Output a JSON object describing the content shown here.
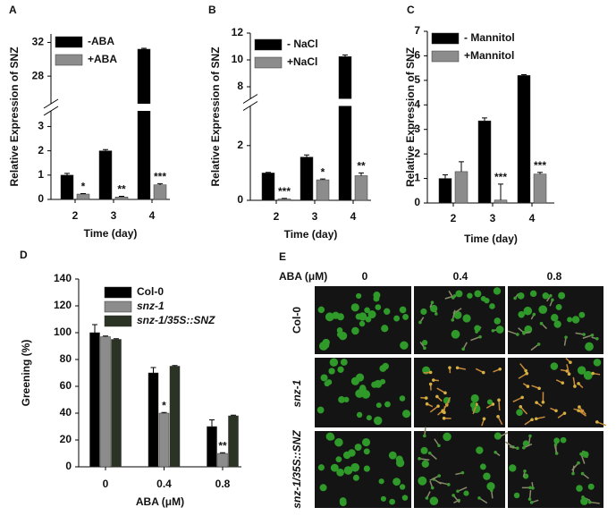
{
  "chart_data": [
    {
      "type": "bar",
      "panel": "A",
      "y_label": "Relative Expression of SNZ",
      "x_label": "Time (day)",
      "categories": [
        "2",
        "3",
        "4"
      ],
      "series": [
        {
          "name": "-ABA",
          "color": "#000000",
          "values": [
            1.0,
            2.0,
            31.2
          ],
          "errors": [
            0.07,
            0.05,
            0.1
          ],
          "sig_labels": [
            null,
            null,
            null
          ]
        },
        {
          "name": "+ABA",
          "color": "#8c8c8c",
          "values": [
            0.22,
            0.1,
            0.6
          ],
          "errors": [
            0.02,
            0.03,
            0.05
          ],
          "sig_labels": [
            "*",
            "**",
            "***"
          ]
        }
      ],
      "ylim": [
        0,
        33
      ],
      "axis_break": [
        3.2,
        26
      ],
      "yticks": [
        0,
        1,
        2,
        3,
        28,
        32
      ],
      "legend": "upper left"
    },
    {
      "type": "bar",
      "panel": "B",
      "y_label": "Relative Expression of SNZ",
      "x_label": "Time (day)",
      "categories": [
        "2",
        "3",
        "4"
      ],
      "series": [
        {
          "name": "- NaCl",
          "color": "#000000",
          "values": [
            1.0,
            1.58,
            10.25
          ],
          "errors": [
            0.02,
            0.08,
            0.12
          ],
          "sig_labels": [
            null,
            null,
            null
          ]
        },
        {
          "name": "+NaCl",
          "color": "#8c8c8c",
          "values": [
            0.05,
            0.75,
            0.9
          ],
          "errors": [
            0.02,
            0.03,
            0.1
          ],
          "sig_labels": [
            "***",
            "*",
            "**"
          ]
        }
      ],
      "ylim": [
        0,
        12
      ],
      "axis_break": [
        3.3,
        7.4
      ],
      "yticks": [
        0,
        2,
        8,
        10,
        12
      ],
      "legend": "upper left"
    },
    {
      "type": "bar",
      "panel": "C",
      "y_label": "Relative Expression of SNZ",
      "x_label": "Time (day)",
      "categories": [
        "2",
        "3",
        "4"
      ],
      "series": [
        {
          "name": "- Mannitol",
          "color": "#000000",
          "values": [
            1.0,
            3.35,
            5.2
          ],
          "errors": [
            0.15,
            0.12,
            0.03
          ],
          "sig_labels": [
            null,
            null,
            null
          ]
        },
        {
          "name": "+Mannitol",
          "color": "#8c8c8c",
          "values": [
            1.28,
            0.12,
            1.18
          ],
          "errors": [
            0.4,
            0.65,
            0.07
          ],
          "sig_labels": [
            null,
            "***",
            "***"
          ]
        }
      ],
      "ylim": [
        0,
        7
      ],
      "yticks": [
        0,
        1,
        2,
        3,
        4,
        5,
        6,
        7
      ],
      "legend": "upper left"
    },
    {
      "type": "bar",
      "panel": "D",
      "y_label": "Greening (%)",
      "x_label": "ABA (μM)",
      "categories": [
        "0",
        "0.4",
        "0.8"
      ],
      "series": [
        {
          "name": "Col-0",
          "color": "#000000",
          "values": [
            100,
            70,
            30
          ],
          "errors": [
            6,
            4,
            5
          ],
          "sig_labels": [
            null,
            null,
            null
          ]
        },
        {
          "name": "snz-1",
          "color": "#8c8c8c",
          "values": [
            97,
            40,
            10
          ],
          "errors": [
            0.5,
            0.5,
            0.5
          ],
          "sig_labels": [
            null,
            "*",
            "**"
          ]
        },
        {
          "name": "snz-1/35S::SNZ",
          "color": "#2b3324",
          "values": [
            95,
            75,
            38
          ],
          "errors": [
            0.5,
            0.5,
            0.5
          ],
          "sig_labels": [
            null,
            null,
            null
          ]
        }
      ],
      "ylim": [
        0,
        140
      ],
      "yticks": [
        0,
        20,
        40,
        60,
        80,
        100,
        120,
        140
      ],
      "legend": "upper right"
    }
  ],
  "panel_e": {
    "panel": "E",
    "header": "ABA (μM)",
    "columns": [
      "0",
      "0.4",
      "0.8"
    ],
    "rows": [
      "Col-0",
      "snz-1",
      "snz-1/35S::SNZ"
    ]
  }
}
